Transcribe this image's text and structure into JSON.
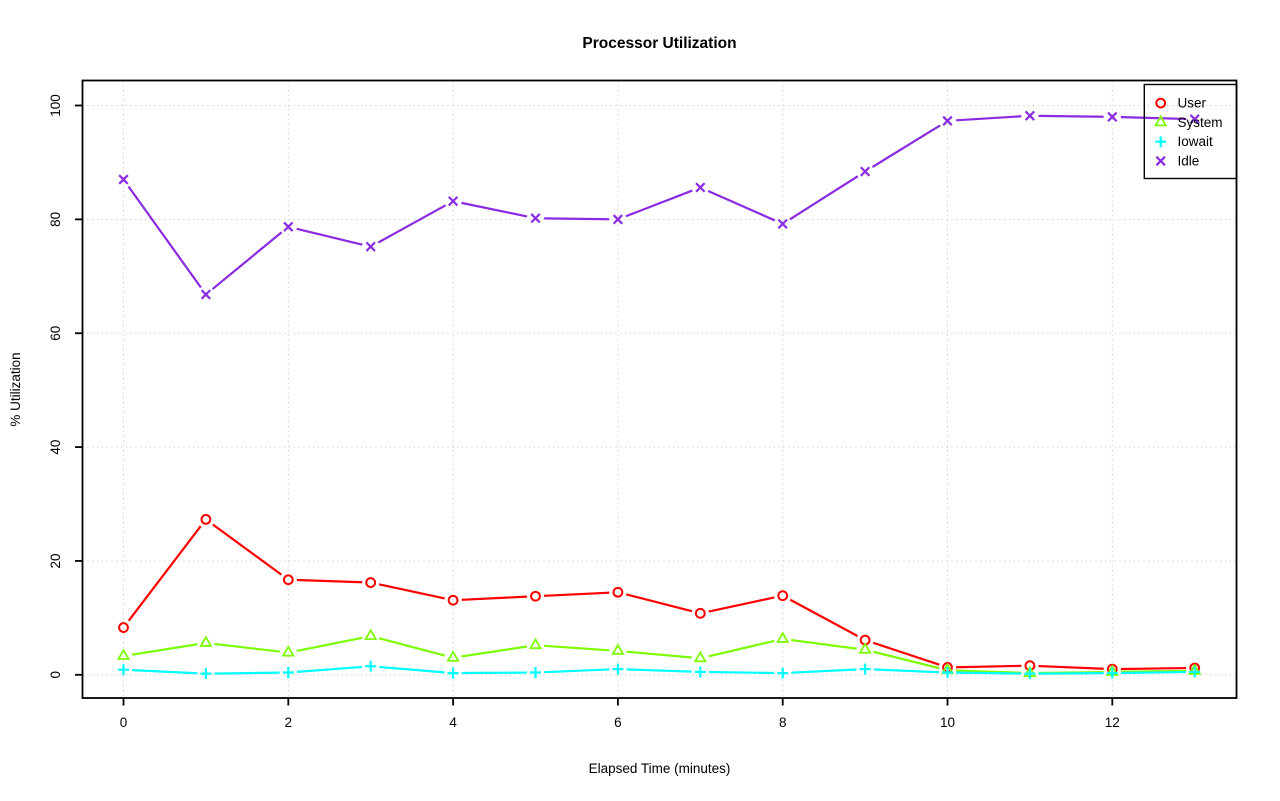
{
  "chart_data": {
    "type": "line",
    "title": "Processor Utilization",
    "xlabel": "Elapsed Time (minutes)",
    "ylabel": "% Utilization",
    "xlim": [
      0,
      13
    ],
    "ylim": [
      0,
      100
    ],
    "xticks": [
      0,
      2,
      4,
      6,
      8,
      10,
      12
    ],
    "yticks": [
      0,
      20,
      40,
      60,
      80,
      100
    ],
    "grid": true,
    "grid_style": "dotted-lightgray",
    "legend_position": "top-right",
    "x": [
      0,
      1,
      2,
      3,
      4,
      5,
      6,
      7,
      8,
      9,
      10,
      11,
      12,
      13
    ],
    "series": [
      {
        "name": "User",
        "color": "#ff0000",
        "marker": "circle",
        "values": [
          8.3,
          27.3,
          16.7,
          16.2,
          13.1,
          13.8,
          14.5,
          10.8,
          13.9,
          6.1,
          1.3,
          1.6,
          1.0,
          1.2
        ]
      },
      {
        "name": "System",
        "color": "#7cfc00",
        "marker": "triangle",
        "values": [
          3.3,
          5.6,
          3.9,
          6.8,
          3.0,
          5.2,
          4.2,
          2.9,
          6.3,
          4.4,
          0.8,
          0.3,
          0.5,
          0.7
        ]
      },
      {
        "name": "Iowait",
        "color": "#00ffff",
        "marker": "plus",
        "values": [
          0.9,
          0.2,
          0.4,
          1.5,
          0.3,
          0.4,
          1.0,
          0.5,
          0.3,
          1.0,
          0.4,
          0.2,
          0.3,
          0.5
        ]
      },
      {
        "name": "Idle",
        "color": "#8a2be2",
        "marker": "x",
        "values": [
          87.0,
          66.8,
          78.7,
          75.2,
          83.2,
          80.2,
          80.0,
          85.6,
          79.2,
          88.4,
          97.3,
          98.2,
          98.0,
          97.6
        ]
      }
    ],
    "colors": {
      "grid": "#c8c8c8",
      "axis": "#000000",
      "background": "#ffffff"
    }
  }
}
